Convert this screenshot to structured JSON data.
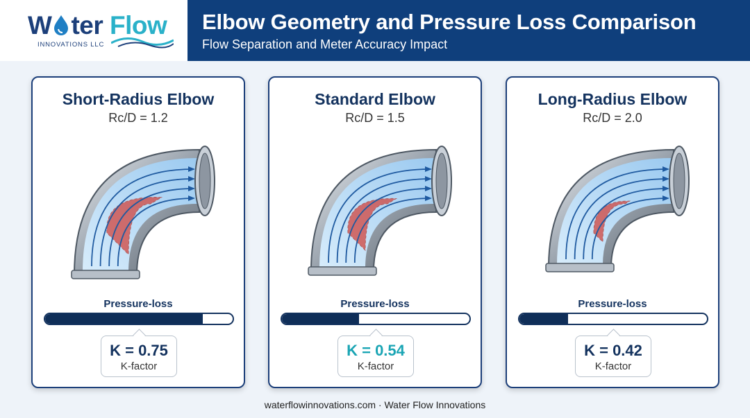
{
  "brand": {
    "logo_word_a": "W",
    "logo_word_b": "ter",
    "logo_word_c": "Flow",
    "logo_sub": "INNOVATIONS LLC"
  },
  "header": {
    "title": "Elbow Geometry and Pressure Loss Comparison",
    "subtitle": "Flow Separation and Meter Accuracy Impact"
  },
  "colors": {
    "brand_navy": "#0f3f7c",
    "accent_teal": "#1aa5b4",
    "separation_red": "#d2453e",
    "flow_blue": "#1f5aa0"
  },
  "cards": [
    {
      "title": "Short-Radius Elbow",
      "ratio": "Rc/D = 1.2",
      "pressure_label": "Pressure-loss",
      "pressure_level": 0.84,
      "k_value": "K = 0.75",
      "k_caption": "K-factor",
      "highlight": false
    },
    {
      "title": "Standard Elbow",
      "ratio": "Rc/D = 1.5",
      "pressure_label": "Pressure-loss",
      "pressure_level": 0.41,
      "k_value": "K = 0.54",
      "k_caption": "K-factor",
      "highlight": true
    },
    {
      "title": "Long-Radius Elbow",
      "ratio": "Rc/D = 2.0",
      "pressure_label": "Pressure-loss",
      "pressure_level": 0.26,
      "k_value": "K = 0.42",
      "k_caption": "K-factor",
      "highlight": false
    }
  ],
  "footer": "waterflowinnovations.com · Water Flow Innovations"
}
